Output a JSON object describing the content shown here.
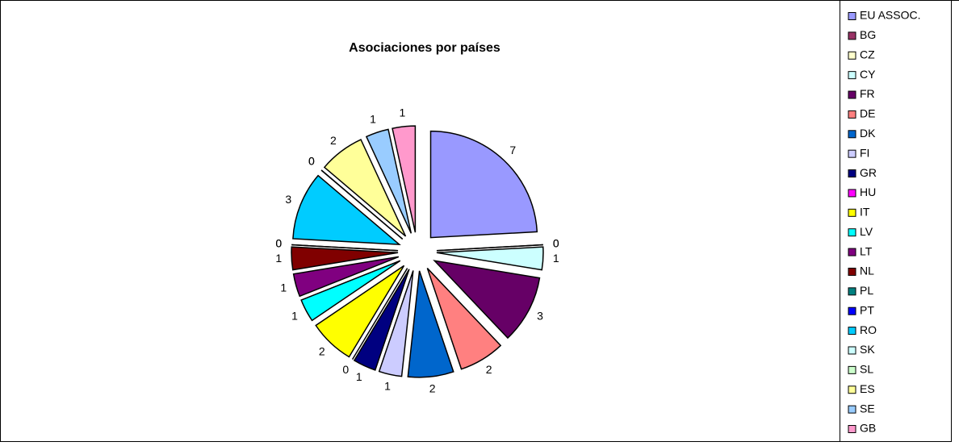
{
  "chart_data": {
    "type": "pie",
    "title": "Asociaciones por países",
    "categories": [
      "EU ASSOC.",
      "BG",
      "CZ",
      "CY",
      "FR",
      "DE",
      "DK",
      "FI",
      "GR",
      "HU",
      "IT",
      "LV",
      "LT",
      "NL",
      "PL",
      "PT",
      "RO",
      "SK",
      "SL",
      "ES",
      "SE",
      "GB"
    ],
    "values": [
      7,
      0,
      0,
      1,
      3,
      2,
      2,
      1,
      1,
      0,
      2,
      1,
      1,
      1,
      0,
      0,
      3,
      0,
      0,
      2,
      1,
      1
    ],
    "colors": [
      "#9999ff",
      "#993366",
      "#ffffcc",
      "#ccffff",
      "#660066",
      "#ff8080",
      "#0066cc",
      "#ccccff",
      "#000080",
      "#ff00ff",
      "#ffff00",
      "#00ffff",
      "#800080",
      "#800000",
      "#008080",
      "#0000ff",
      "#00ccff",
      "#ccffff",
      "#ccffcc",
      "#ffff99",
      "#99ccff",
      "#ff99cc"
    ],
    "legend": "right"
  }
}
